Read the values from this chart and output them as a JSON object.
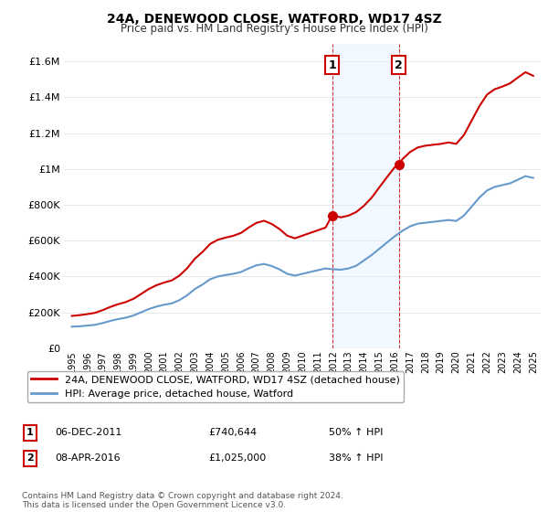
{
  "title": "24A, DENEWOOD CLOSE, WATFORD, WD17 4SZ",
  "subtitle": "Price paid vs. HM Land Registry's House Price Index (HPI)",
  "legend_line1": "24A, DENEWOOD CLOSE, WATFORD, WD17 4SZ (detached house)",
  "legend_line2": "HPI: Average price, detached house, Watford",
  "annotation1_label": "1",
  "annotation1_date": "06-DEC-2011",
  "annotation1_price": "£740,644",
  "annotation1_hpi": "50% ↑ HPI",
  "annotation2_label": "2",
  "annotation2_date": "08-APR-2016",
  "annotation2_price": "£1,025,000",
  "annotation2_hpi": "38% ↑ HPI",
  "footnote": "Contains HM Land Registry data © Crown copyright and database right 2024.\nThis data is licensed under the Open Government Licence v3.0.",
  "red_color": "#cc0000",
  "blue_color": "#6699cc",
  "highlight_color": "#ddeeff",
  "background_color": "#ffffff",
  "sale1_x": 2011.92,
  "sale1_y": 740644,
  "sale2_x": 2016.27,
  "sale2_y": 1025000,
  "ylim": [
    0,
    1700000
  ],
  "xlim_start": 1994.5,
  "xlim_end": 2025.5
}
